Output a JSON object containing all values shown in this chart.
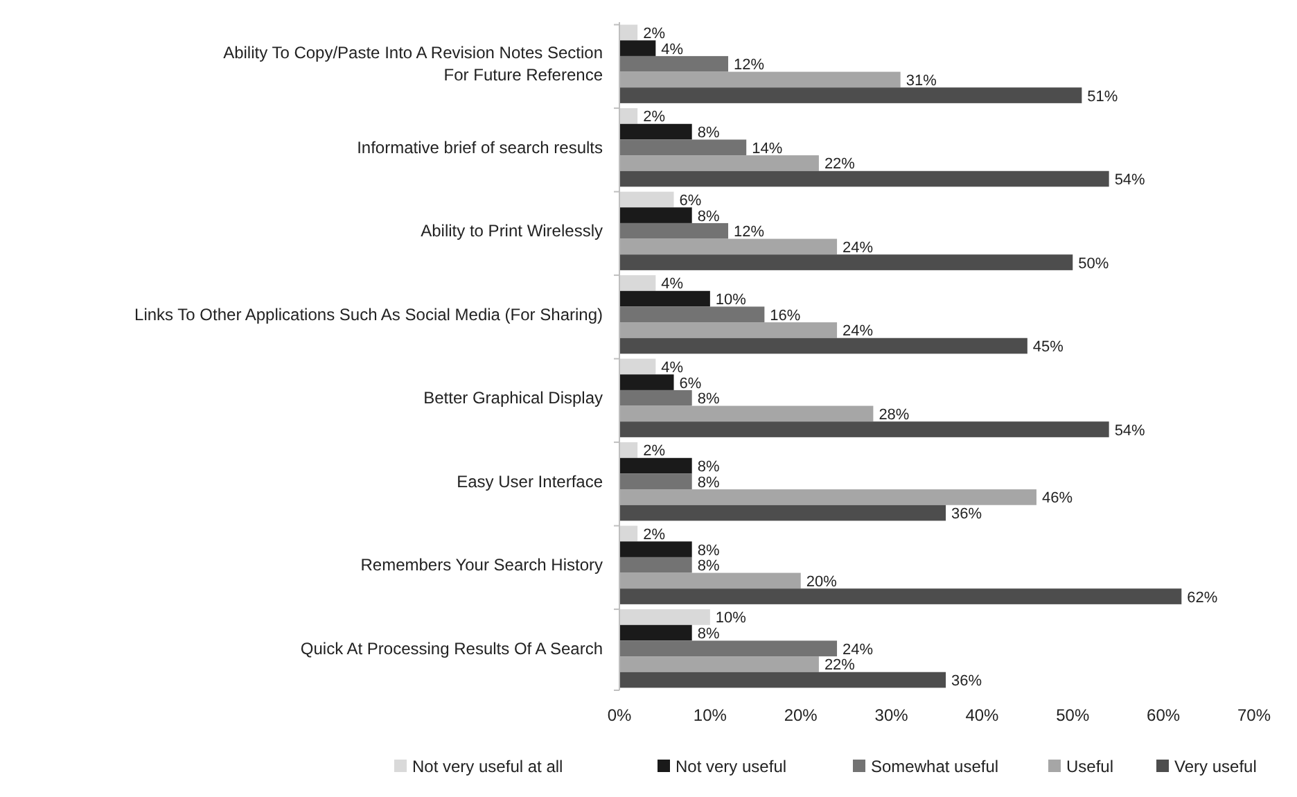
{
  "chart_data": {
    "type": "bar",
    "orientation": "horizontal",
    "categories": [
      "Ability To Copy/Paste Into A Revision Notes Section For Future Reference",
      "Informative brief of search results",
      "Ability to Print Wirelessly",
      "Links To Other Applications Such As Social Media (For Sharing)",
      "Better Graphical Display",
      "Easy User Interface",
      "Remembers Your Search History",
      "Quick At Processing Results Of A Search"
    ],
    "series": [
      {
        "name": "Not very useful at all",
        "color": "#d9d9d9",
        "values": [
          2,
          2,
          6,
          4,
          4,
          2,
          2,
          10
        ],
        "value_labels": [
          "2%",
          "2%",
          "6%",
          "4%",
          "4%",
          "2%",
          "2%",
          "10%"
        ]
      },
      {
        "name": "Not very useful",
        "color": "#1a1a1a",
        "values": [
          4,
          8,
          8,
          10,
          6,
          8,
          8,
          8
        ],
        "value_labels": [
          "4%",
          "8%",
          "8%",
          "10%",
          "6%",
          "8%",
          "8%",
          "8%"
        ]
      },
      {
        "name": "Somewhat useful",
        "color": "#737373",
        "values": [
          12,
          14,
          12,
          16,
          8,
          8,
          8,
          24
        ],
        "value_labels": [
          "12%",
          "14%",
          "12%",
          "16%",
          "8%",
          "8%",
          "8%",
          "24%"
        ]
      },
      {
        "name": "Useful",
        "color": "#a6a6a6",
        "values": [
          31,
          22,
          24,
          24,
          28,
          46,
          20,
          22
        ],
        "value_labels": [
          "31%",
          "22%",
          "24%",
          "24%",
          "28%",
          "46%",
          "20%",
          "22%"
        ]
      },
      {
        "name": "Very useful",
        "color": "#4d4d4d",
        "values": [
          51,
          54,
          50,
          45,
          54,
          36,
          62,
          36
        ],
        "value_labels": [
          "51%",
          "54%",
          "50%",
          "45%",
          "54%",
          "36%",
          "62%",
          "36%"
        ]
      }
    ],
    "xlim": [
      0,
      70
    ],
    "xticks": [
      {
        "value": 0,
        "label": "0%"
      },
      {
        "value": 10,
        "label": "10%"
      },
      {
        "value": 20,
        "label": "20%"
      },
      {
        "value": 30,
        "label": "30%"
      },
      {
        "value": 40,
        "label": "40%"
      },
      {
        "value": 50,
        "label": "50%"
      },
      {
        "value": 60,
        "label": "60%"
      },
      {
        "value": 70,
        "label": "70%"
      }
    ],
    "grid": false,
    "legend": "bottom"
  }
}
